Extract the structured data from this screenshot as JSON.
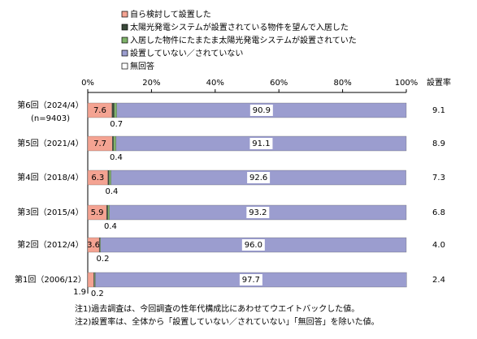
{
  "chart_data": {
    "type": "stacked-bar-horizontal",
    "categories": [
      "第6回（2024/4）",
      "第5回（2021/4）",
      "第4回（2018/4）",
      "第3回（2015/4）",
      "第2回（2012/4）",
      "第1回（2006/12）"
    ],
    "n_label": "(n=9403)",
    "series": [
      {
        "name": "自ら検討して設置した",
        "color": "#f4a392",
        "values": [
          7.6,
          7.7,
          6.3,
          5.9,
          3.6,
          1.9
        ]
      },
      {
        "name": "太陽光発電システムが設置されている物件を望んで入居した",
        "color": "#3a4a3a",
        "values": [
          0.7,
          0.4,
          0.4,
          0.4,
          0.2,
          0.2
        ]
      },
      {
        "name": "入居した物件にたまたま太陽光発電システムが設置されていた",
        "color": "#7fb36a",
        "values": [
          0.8,
          0.8,
          0.6,
          0.5,
          0.2,
          0.3
        ]
      },
      {
        "name": "設置していない／されていない",
        "color": "#9b9dcf",
        "values": [
          90.9,
          91.1,
          92.6,
          93.2,
          96.0,
          97.7
        ],
        "value_labels": [
          "90.9",
          "91.1",
          "92.6",
          "93.2",
          "96.0",
          "97.7"
        ]
      },
      {
        "name": "無回答",
        "color": "#ffffff",
        "values": [
          null,
          null,
          null,
          null,
          null,
          null
        ]
      }
    ],
    "xlim": [
      0,
      100
    ],
    "xticks": [
      {
        "value": 0,
        "label": "0%"
      },
      {
        "value": 20,
        "label": "20%"
      },
      {
        "value": 40,
        "label": "40%"
      },
      {
        "value": 60,
        "label": "60%"
      },
      {
        "value": 80,
        "label": "80%"
      },
      {
        "value": 100,
        "label": "100%"
      }
    ],
    "rate_header": "設置率",
    "rate_values": [
      9.1,
      8.9,
      7.3,
      6.8,
      4.0,
      2.4
    ],
    "rate_labels": [
      "9.1",
      "8.9",
      "7.3",
      "6.8",
      "4.0",
      "2.4"
    ],
    "notes": [
      "注1)過去調査は、今回調査の性年代構成比にあわせてウエイトバックした値。",
      "注2)設置率は、全体から「設置していない／されていない」「無回答」を除いた値。"
    ]
  }
}
